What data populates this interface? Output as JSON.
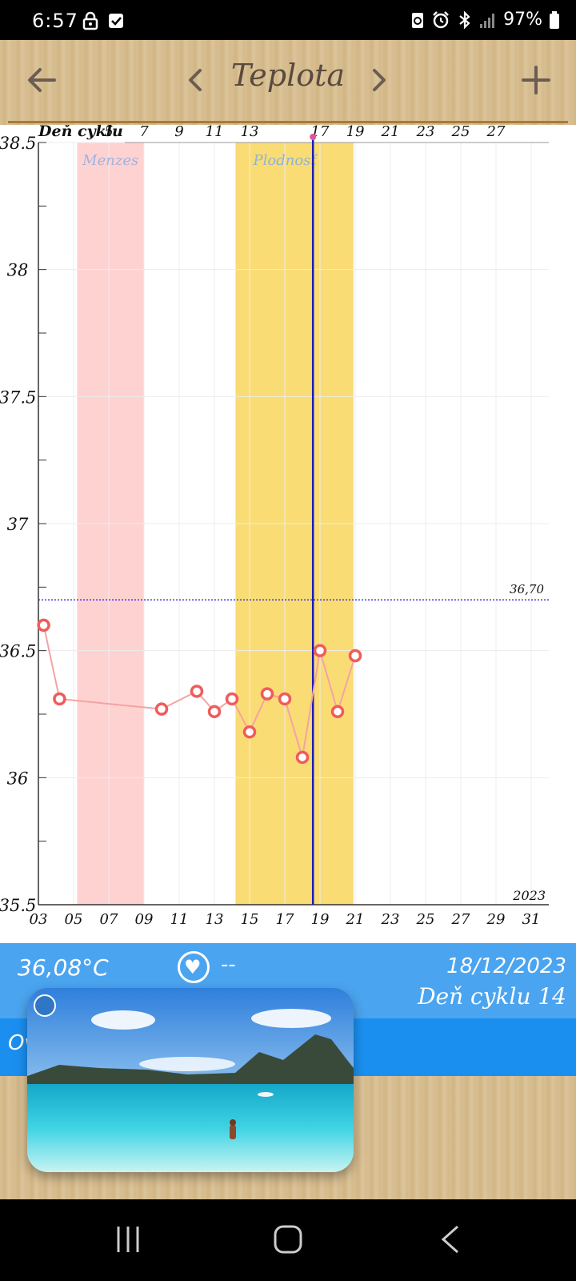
{
  "status_bar": {
    "time": "6:57",
    "battery": "97%",
    "icons": [
      "lock-icon",
      "check-box-icon",
      "battery-saver-icon",
      "alarm-icon",
      "bluetooth-icon",
      "signal-icon",
      "battery-icon"
    ]
  },
  "header": {
    "title": "Teplota",
    "icons": [
      "back-arrow-icon",
      "chevron-left-icon",
      "chevron-right-icon",
      "plus-icon"
    ]
  },
  "chart_data": {
    "type": "line",
    "top_axis_label": "Deň cyklu",
    "top_ticks": [
      "5",
      "7",
      "9",
      "11",
      "13",
      "17",
      "19",
      "21",
      "23",
      "25",
      "27"
    ],
    "bottom_ticks": [
      "03",
      "05",
      "07",
      "09",
      "11",
      "13",
      "15",
      "17",
      "19",
      "21",
      "23",
      "25",
      "27",
      "29",
      "31"
    ],
    "y_ticks": [
      "38.5",
      "38",
      "37.5",
      "37",
      "36.5",
      "36",
      "35.5"
    ],
    "ylim": [
      35.5,
      38.5
    ],
    "xlim": [
      3,
      32
    ],
    "year_label": "2023",
    "reference_line": {
      "value": 36.7,
      "label": "36,70",
      "color": "#3a3adf"
    },
    "bands": [
      {
        "label": "Menzes",
        "from": 5.2,
        "to": 9.0,
        "color": "#ffd2d2",
        "label_color": "#9fb3e0"
      },
      {
        "label": "Plodnosť",
        "from": 14.2,
        "to": 20.9,
        "color": "#fadc74",
        "label_color": "#8fb3d8"
      }
    ],
    "selected_day": 18.6,
    "series": [
      {
        "color": "#ef5c5c",
        "points": [
          {
            "x": 3.3,
            "y": 36.6
          },
          {
            "x": 4.2,
            "y": 36.31
          },
          {
            "x": 10.0,
            "y": 36.27
          },
          {
            "x": 12.0,
            "y": 36.34
          },
          {
            "x": 13.0,
            "y": 36.26
          },
          {
            "x": 14.0,
            "y": 36.31
          },
          {
            "x": 15.0,
            "y": 36.18
          },
          {
            "x": 16.0,
            "y": 36.33
          },
          {
            "x": 17.0,
            "y": 36.31
          },
          {
            "x": 18.0,
            "y": 36.08
          },
          {
            "x": 19.0,
            "y": 36.5
          },
          {
            "x": 20.0,
            "y": 36.26
          },
          {
            "x": 21.0,
            "y": 36.48
          }
        ]
      }
    ]
  },
  "info": {
    "temperature": "36,08°C",
    "heart_value": "--",
    "date": "18/12/2023",
    "cycle_day": "Deň cyklu 14",
    "band_text": "Ov"
  }
}
